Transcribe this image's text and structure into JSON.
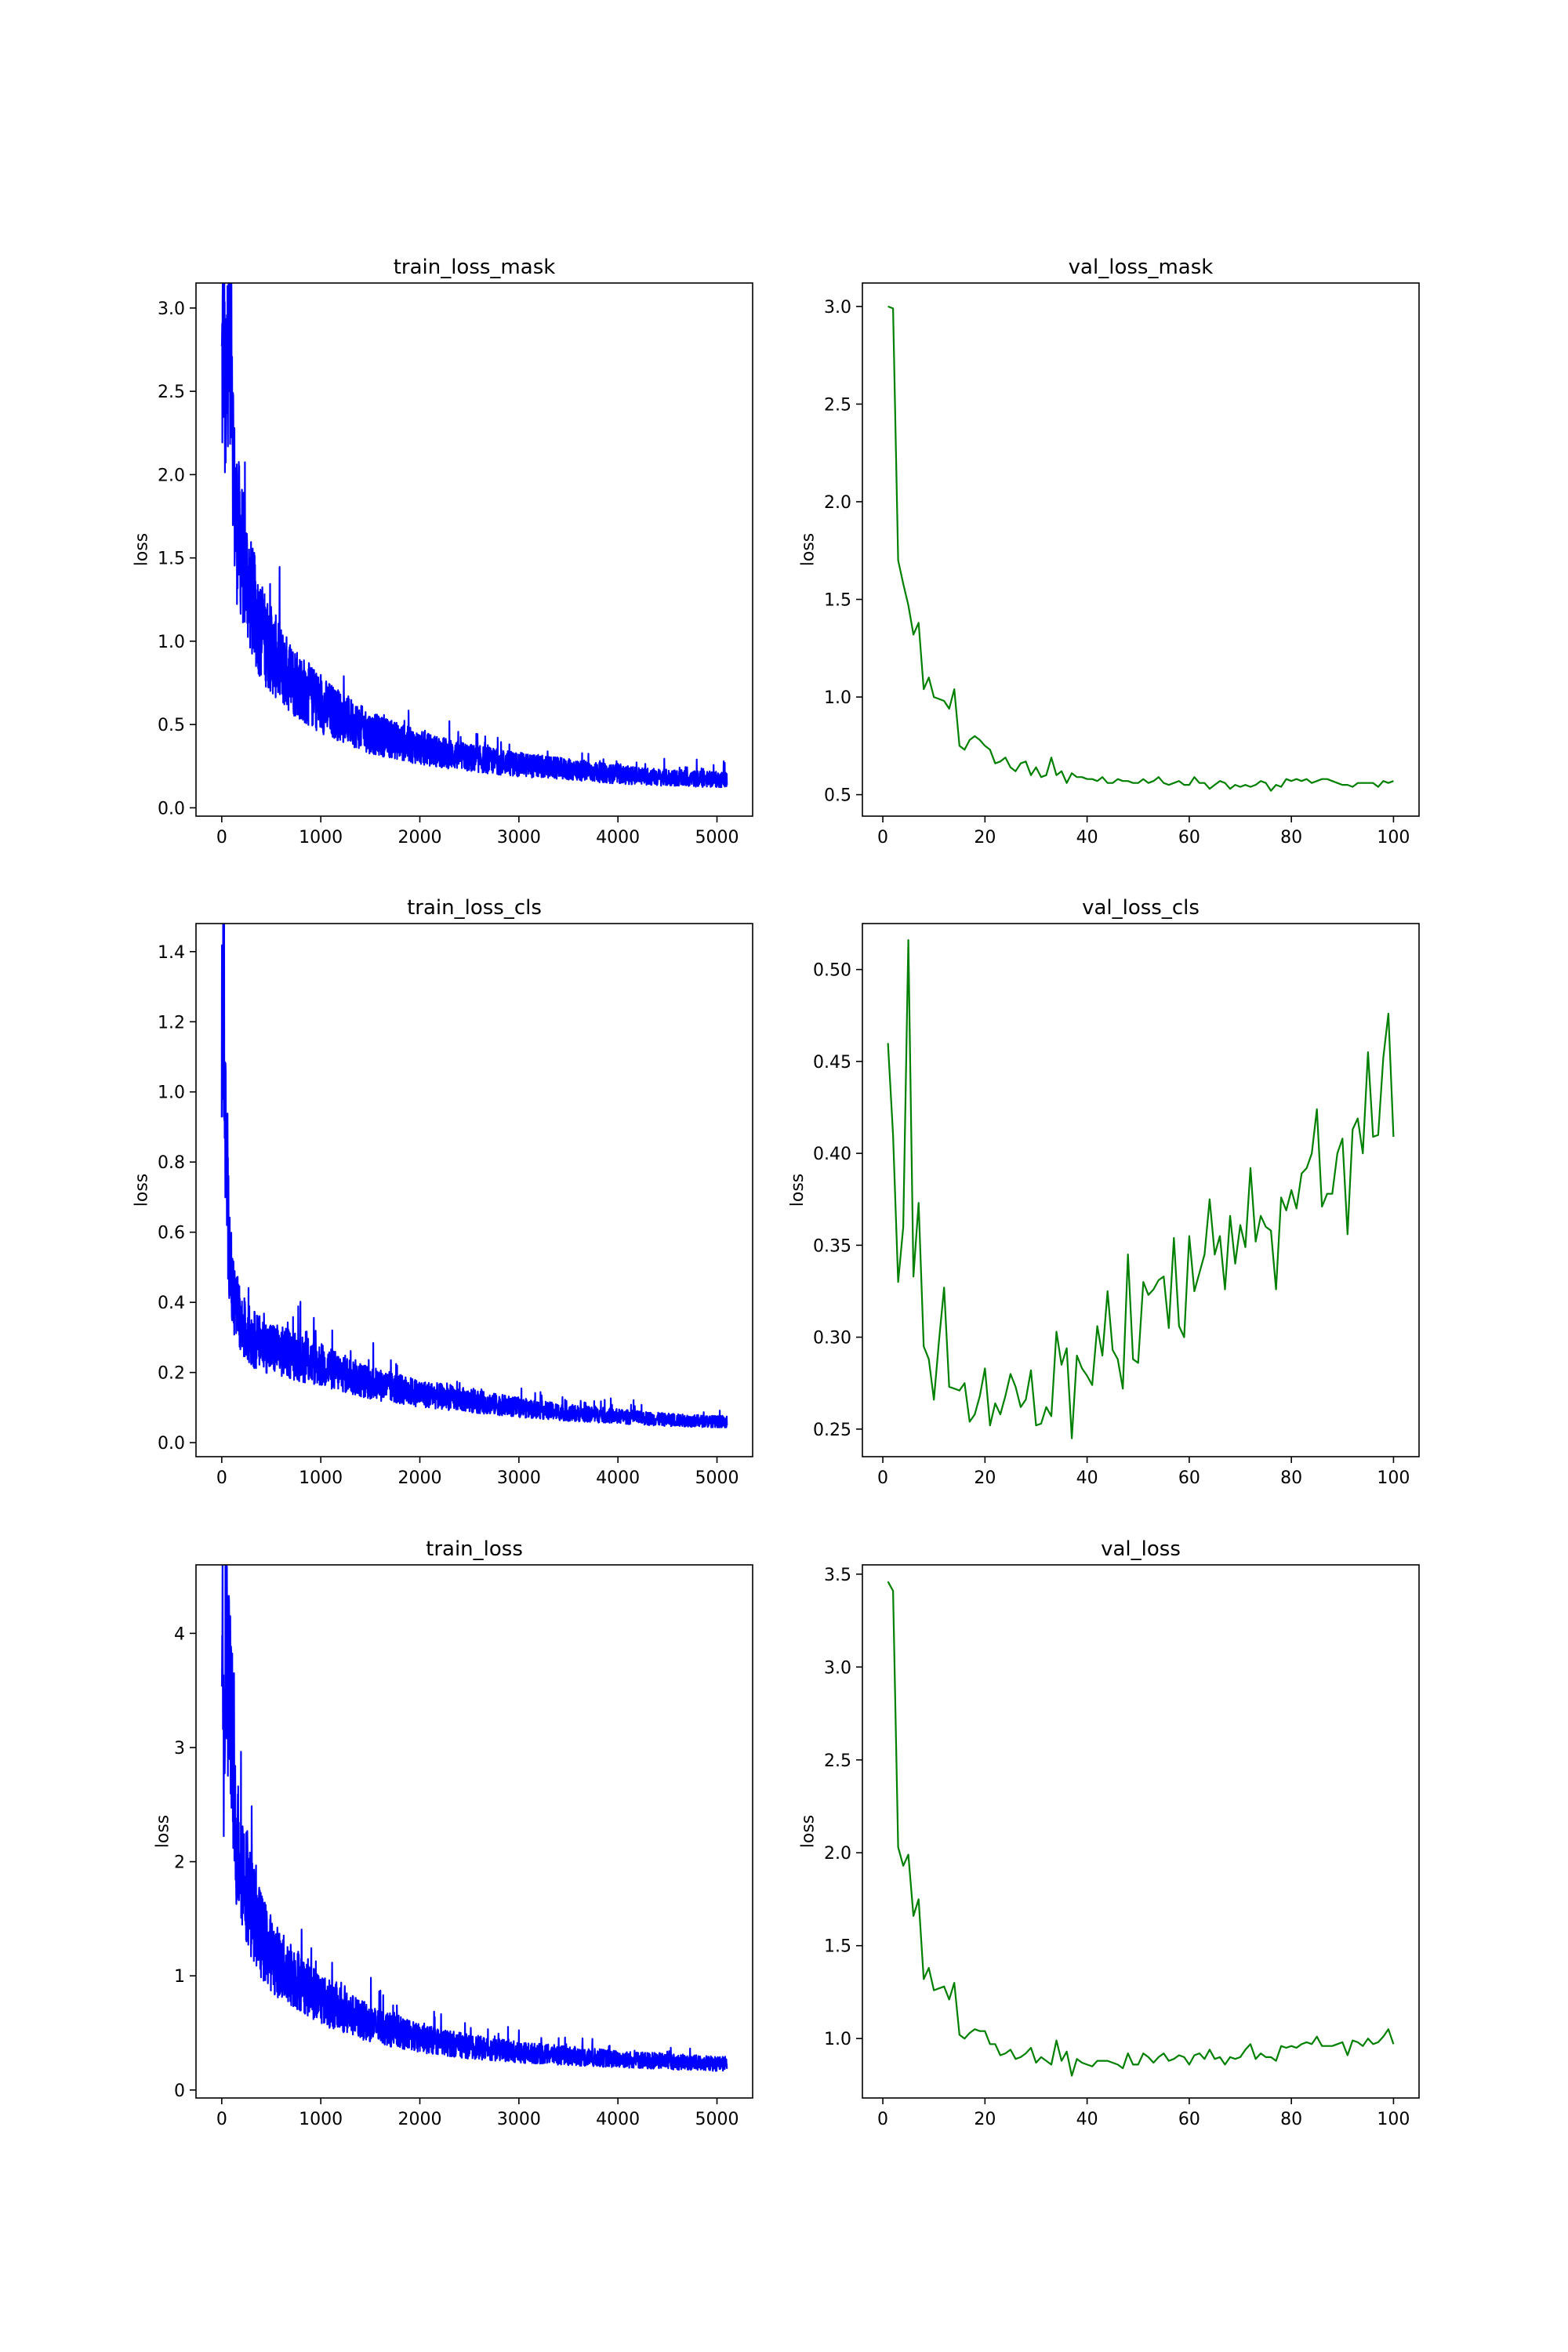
{
  "figure": {
    "background": "#ffffff",
    "frame_color": "#000000"
  },
  "chart_data": [
    {
      "type": "line",
      "title": "train_loss_mask",
      "xlabel": "",
      "ylabel": "loss",
      "xlim": [
        -260,
        5360
      ],
      "ylim": [
        -0.05,
        3.15
      ],
      "xticks": [
        0,
        1000,
        2000,
        3000,
        4000,
        5000
      ],
      "yticks": [
        0.0,
        0.5,
        1.0,
        1.5,
        2.0,
        2.5,
        3.0
      ],
      "ytick_labels": [
        "0.0",
        "0.5",
        "1.0",
        "1.5",
        "2.0",
        "2.5",
        "3.0"
      ],
      "grid": false,
      "color": "#0000ff",
      "noisy": true,
      "series": [
        {
          "x": [
            0,
            20,
            40,
            60,
            80,
            100,
            120,
            150,
            200,
            250,
            300,
            400,
            500,
            600,
            700,
            800,
            1000,
            1200,
            1500,
            2000,
            2500,
            3000,
            3500,
            4000,
            4500,
            5000,
            5100
          ],
          "y": [
            2.55,
            3.0,
            2.15,
            3.0,
            3.0,
            3.0,
            1.9,
            1.7,
            1.55,
            1.4,
            1.25,
            1.05,
            0.95,
            0.85,
            0.78,
            0.72,
            0.62,
            0.55,
            0.45,
            0.36,
            0.3,
            0.26,
            0.23,
            0.2,
            0.18,
            0.17,
            0.17
          ]
        }
      ]
    },
    {
      "type": "line",
      "title": "val_loss_mask",
      "xlabel": "",
      "ylabel": "loss",
      "xlim": [
        -4,
        105
      ],
      "ylim": [
        0.39,
        3.12
      ],
      "xticks": [
        0,
        20,
        40,
        60,
        80,
        100
      ],
      "yticks": [
        0.5,
        1.0,
        1.5,
        2.0,
        2.5,
        3.0
      ],
      "ytick_labels": [
        "0.5",
        "1.0",
        "1.5",
        "2.0",
        "2.5",
        "3.0"
      ],
      "grid": false,
      "color": "#008000",
      "noisy": false,
      "series": [
        {
          "x": [
            1,
            2,
            3,
            4,
            5,
            6,
            7,
            8,
            9,
            10,
            11,
            12,
            13,
            14,
            15,
            16,
            17,
            18,
            19,
            20,
            21,
            22,
            23,
            24,
            25,
            26,
            27,
            28,
            29,
            30,
            31,
            32,
            33,
            34,
            35,
            36,
            37,
            38,
            39,
            40,
            41,
            42,
            43,
            44,
            45,
            46,
            47,
            48,
            49,
            50,
            51,
            52,
            53,
            54,
            55,
            56,
            57,
            58,
            59,
            60,
            61,
            62,
            63,
            64,
            65,
            66,
            67,
            68,
            69,
            70,
            71,
            72,
            73,
            74,
            75,
            76,
            77,
            78,
            79,
            80,
            81,
            82,
            83,
            84,
            85,
            86,
            87,
            88,
            89,
            90,
            91,
            92,
            93,
            94,
            95,
            96,
            97,
            98,
            99,
            100
          ],
          "y": [
            3.0,
            2.99,
            1.7,
            1.58,
            1.47,
            1.32,
            1.38,
            1.04,
            1.1,
            1.0,
            0.99,
            0.98,
            0.94,
            1.04,
            0.75,
            0.73,
            0.78,
            0.8,
            0.78,
            0.75,
            0.73,
            0.66,
            0.67,
            0.69,
            0.64,
            0.62,
            0.66,
            0.67,
            0.6,
            0.64,
            0.59,
            0.6,
            0.69,
            0.6,
            0.62,
            0.56,
            0.61,
            0.59,
            0.59,
            0.58,
            0.58,
            0.57,
            0.59,
            0.56,
            0.56,
            0.58,
            0.57,
            0.57,
            0.56,
            0.56,
            0.58,
            0.56,
            0.57,
            0.59,
            0.56,
            0.55,
            0.56,
            0.57,
            0.55,
            0.55,
            0.59,
            0.56,
            0.56,
            0.53,
            0.55,
            0.57,
            0.56,
            0.53,
            0.55,
            0.54,
            0.55,
            0.54,
            0.55,
            0.57,
            0.56,
            0.52,
            0.55,
            0.54,
            0.58,
            0.57,
            0.58,
            0.57,
            0.58,
            0.56,
            0.57,
            0.58,
            0.58,
            0.57,
            0.56,
            0.55,
            0.55,
            0.54,
            0.56,
            0.56,
            0.56,
            0.56,
            0.54,
            0.57,
            0.56,
            0.57
          ]
        }
      ]
    },
    {
      "type": "line",
      "title": "train_loss_cls",
      "xlabel": "",
      "ylabel": "loss",
      "xlim": [
        -260,
        5360
      ],
      "ylim": [
        -0.04,
        1.48
      ],
      "xticks": [
        0,
        1000,
        2000,
        3000,
        4000,
        5000
      ],
      "yticks": [
        0.0,
        0.2,
        0.4,
        0.6,
        0.8,
        1.0,
        1.2,
        1.4
      ],
      "ytick_labels": [
        "0.0",
        "0.2",
        "0.4",
        "0.6",
        "0.8",
        "1.0",
        "1.2",
        "1.4"
      ],
      "grid": false,
      "color": "#0000ff",
      "noisy": true,
      "series": [
        {
          "x": [
            0,
            10,
            20,
            40,
            60,
            80,
            100,
            150,
            200,
            300,
            400,
            500,
            600,
            800,
            1000,
            1200,
            1500,
            2000,
            2500,
            3000,
            3500,
            4000,
            4500,
            5000,
            5100
          ],
          "y": [
            1.1,
            1.4,
            1.18,
            0.85,
            0.65,
            0.55,
            0.45,
            0.38,
            0.33,
            0.3,
            0.28,
            0.27,
            0.26,
            0.24,
            0.22,
            0.2,
            0.17,
            0.14,
            0.12,
            0.1,
            0.085,
            0.075,
            0.065,
            0.06,
            0.06
          ]
        }
      ]
    },
    {
      "type": "line",
      "title": "val_loss_cls",
      "xlabel": "",
      "ylabel": "loss",
      "xlim": [
        -4,
        105
      ],
      "ylim": [
        0.235,
        0.525
      ],
      "xticks": [
        0,
        20,
        40,
        60,
        80,
        100
      ],
      "yticks": [
        0.25,
        0.3,
        0.35,
        0.4,
        0.45,
        0.5
      ],
      "ytick_labels": [
        "0.25",
        "0.30",
        "0.35",
        "0.40",
        "0.45",
        "0.50"
      ],
      "grid": false,
      "color": "#008000",
      "noisy": false,
      "series": [
        {
          "x": [
            1,
            2,
            3,
            4,
            5,
            6,
            7,
            8,
            9,
            10,
            11,
            12,
            13,
            14,
            15,
            16,
            17,
            18,
            19,
            20,
            21,
            22,
            23,
            24,
            25,
            26,
            27,
            28,
            29,
            30,
            31,
            32,
            33,
            34,
            35,
            36,
            37,
            38,
            39,
            40,
            41,
            42,
            43,
            44,
            45,
            46,
            47,
            48,
            49,
            50,
            51,
            52,
            53,
            54,
            55,
            56,
            57,
            58,
            59,
            60,
            61,
            62,
            63,
            64,
            65,
            66,
            67,
            68,
            69,
            70,
            71,
            72,
            73,
            74,
            75,
            76,
            77,
            78,
            79,
            80,
            81,
            82,
            83,
            84,
            85,
            86,
            87,
            88,
            89,
            90,
            91,
            92,
            93,
            94,
            95,
            96,
            97,
            98,
            99,
            100
          ],
          "y": [
            0.46,
            0.41,
            0.33,
            0.36,
            0.516,
            0.333,
            0.373,
            0.295,
            0.288,
            0.266,
            0.298,
            0.327,
            0.273,
            0.272,
            0.271,
            0.275,
            0.254,
            0.258,
            0.268,
            0.283,
            0.252,
            0.264,
            0.258,
            0.268,
            0.28,
            0.273,
            0.262,
            0.266,
            0.282,
            0.252,
            0.253,
            0.262,
            0.257,
            0.303,
            0.285,
            0.294,
            0.245,
            0.29,
            0.283,
            0.279,
            0.274,
            0.306,
            0.29,
            0.325,
            0.293,
            0.288,
            0.272,
            0.345,
            0.288,
            0.286,
            0.33,
            0.323,
            0.326,
            0.331,
            0.333,
            0.305,
            0.354,
            0.306,
            0.3,
            0.355,
            0.325,
            0.335,
            0.345,
            0.375,
            0.345,
            0.355,
            0.326,
            0.366,
            0.34,
            0.361,
            0.349,
            0.392,
            0.352,
            0.366,
            0.36,
            0.358,
            0.326,
            0.376,
            0.369,
            0.38,
            0.37,
            0.389,
            0.392,
            0.4,
            0.424,
            0.371,
            0.378,
            0.378,
            0.4,
            0.408,
            0.356,
            0.413,
            0.419,
            0.4,
            0.455,
            0.409,
            0.41,
            0.452,
            0.476,
            0.409
          ]
        }
      ]
    },
    {
      "type": "line",
      "title": "train_loss",
      "xlabel": "",
      "ylabel": "loss",
      "xlim": [
        -260,
        5360
      ],
      "ylim": [
        -0.07,
        4.6
      ],
      "xticks": [
        0,
        1000,
        2000,
        3000,
        4000,
        5000
      ],
      "yticks": [
        0,
        1,
        2,
        3,
        4
      ],
      "ytick_labels": [
        "0",
        "1",
        "2",
        "3",
        "4"
      ],
      "grid": false,
      "color": "#0000ff",
      "noisy": true,
      "series": [
        {
          "x": [
            0,
            10,
            20,
            40,
            60,
            80,
            100,
            120,
            150,
            200,
            250,
            300,
            400,
            500,
            600,
            800,
            1000,
            1200,
            1500,
            2000,
            2500,
            3000,
            3500,
            4000,
            4500,
            5000,
            5100
          ],
          "y": [
            3.5,
            4.35,
            2.7,
            3.8,
            3.5,
            3.6,
            3.3,
            2.4,
            2.2,
            2.0,
            1.8,
            1.6,
            1.35,
            1.2,
            1.08,
            0.95,
            0.8,
            0.7,
            0.58,
            0.45,
            0.38,
            0.33,
            0.3,
            0.27,
            0.25,
            0.23,
            0.23
          ]
        }
      ]
    },
    {
      "type": "line",
      "title": "val_loss",
      "xlabel": "",
      "ylabel": "loss",
      "xlim": [
        -4,
        105
      ],
      "ylim": [
        0.68,
        3.55
      ],
      "xticks": [
        0,
        20,
        40,
        60,
        80,
        100
      ],
      "yticks": [
        1.0,
        1.5,
        2.0,
        2.5,
        3.0,
        3.5
      ],
      "ytick_labels": [
        "1.0",
        "1.5",
        "2.0",
        "2.5",
        "3.0",
        "3.5"
      ],
      "grid": false,
      "color": "#008000",
      "noisy": false,
      "series": [
        {
          "x": [
            1,
            2,
            3,
            4,
            5,
            6,
            7,
            8,
            9,
            10,
            11,
            12,
            13,
            14,
            15,
            16,
            17,
            18,
            19,
            20,
            21,
            22,
            23,
            24,
            25,
            26,
            27,
            28,
            29,
            30,
            31,
            32,
            33,
            34,
            35,
            36,
            37,
            38,
            39,
            40,
            41,
            42,
            43,
            44,
            45,
            46,
            47,
            48,
            49,
            50,
            51,
            52,
            53,
            54,
            55,
            56,
            57,
            58,
            59,
            60,
            61,
            62,
            63,
            64,
            65,
            66,
            67,
            68,
            69,
            70,
            71,
            72,
            73,
            74,
            75,
            76,
            77,
            78,
            79,
            80,
            81,
            82,
            83,
            84,
            85,
            86,
            87,
            88,
            89,
            90,
            91,
            92,
            93,
            94,
            95,
            96,
            97,
            98,
            99,
            100
          ],
          "y": [
            3.46,
            3.41,
            2.03,
            1.93,
            1.99,
            1.66,
            1.75,
            1.32,
            1.38,
            1.26,
            1.27,
            1.28,
            1.21,
            1.3,
            1.02,
            1.0,
            1.03,
            1.05,
            1.04,
            1.04,
            0.97,
            0.97,
            0.91,
            0.92,
            0.94,
            0.89,
            0.9,
            0.92,
            0.95,
            0.87,
            0.9,
            0.88,
            0.86,
            0.99,
            0.88,
            0.93,
            0.8,
            0.89,
            0.87,
            0.86,
            0.85,
            0.88,
            0.88,
            0.88,
            0.87,
            0.86,
            0.84,
            0.92,
            0.86,
            0.86,
            0.92,
            0.9,
            0.87,
            0.9,
            0.92,
            0.88,
            0.89,
            0.91,
            0.9,
            0.86,
            0.91,
            0.92,
            0.89,
            0.94,
            0.89,
            0.9,
            0.86,
            0.9,
            0.89,
            0.9,
            0.94,
            0.97,
            0.89,
            0.92,
            0.9,
            0.9,
            0.88,
            0.96,
            0.95,
            0.96,
            0.95,
            0.97,
            0.98,
            0.97,
            1.01,
            0.96,
            0.96,
            0.96,
            0.97,
            0.98,
            0.91,
            0.99,
            0.98,
            0.96,
            1.0,
            0.97,
            0.98,
            1.01,
            1.05,
            0.97
          ]
        }
      ]
    }
  ]
}
